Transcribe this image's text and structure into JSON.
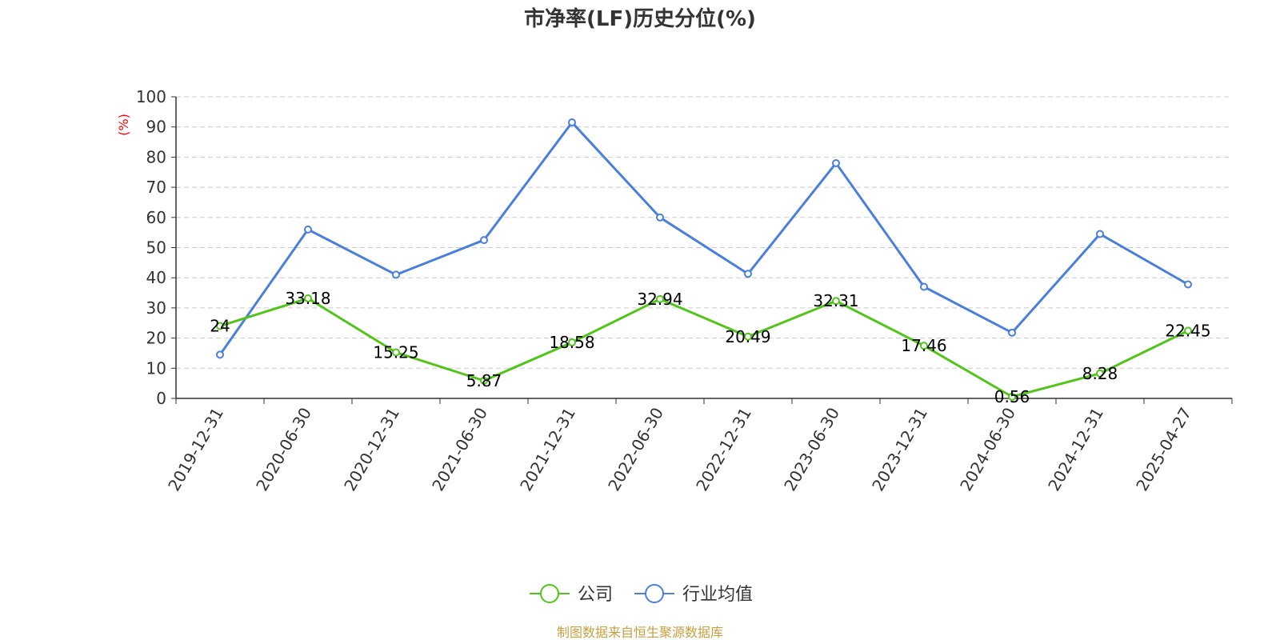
{
  "chart_data": {
    "type": "line",
    "title": "市净率(LF)历史分位(%)",
    "ylabel": "(%)",
    "xlabel": "",
    "ylim": [
      0,
      100
    ],
    "yticks": [
      0,
      10,
      20,
      30,
      40,
      50,
      60,
      70,
      80,
      90,
      100
    ],
    "grid": true,
    "legend_position": "bottom",
    "categories": [
      "2019-12-31",
      "2020-06-30",
      "2020-12-31",
      "2021-06-30",
      "2021-12-31",
      "2022-06-30",
      "2022-12-31",
      "2023-06-30",
      "2023-12-31",
      "2024-06-30",
      "2024-12-31",
      "2025-04-27"
    ],
    "series": [
      {
        "name": "公司",
        "color": "#52c41a",
        "values": [
          24,
          33.18,
          15.25,
          5.87,
          18.58,
          32.94,
          20.49,
          32.31,
          17.46,
          0.56,
          8.28,
          22.45
        ],
        "data_labels": [
          "24",
          "33.18",
          "15.25",
          "5.87",
          "18.58",
          "32.94",
          "20.49",
          "32.31",
          "17.46",
          "0.56",
          "8.28",
          "22.45"
        ]
      },
      {
        "name": "行业均值",
        "color": "#4a7fdc",
        "values": [
          14.5,
          56,
          41,
          52.5,
          91.5,
          60,
          41.3,
          78,
          37,
          21.8,
          54.5,
          37.8
        ]
      }
    ]
  },
  "source_text": "制图数据来自恒生聚源数据库"
}
